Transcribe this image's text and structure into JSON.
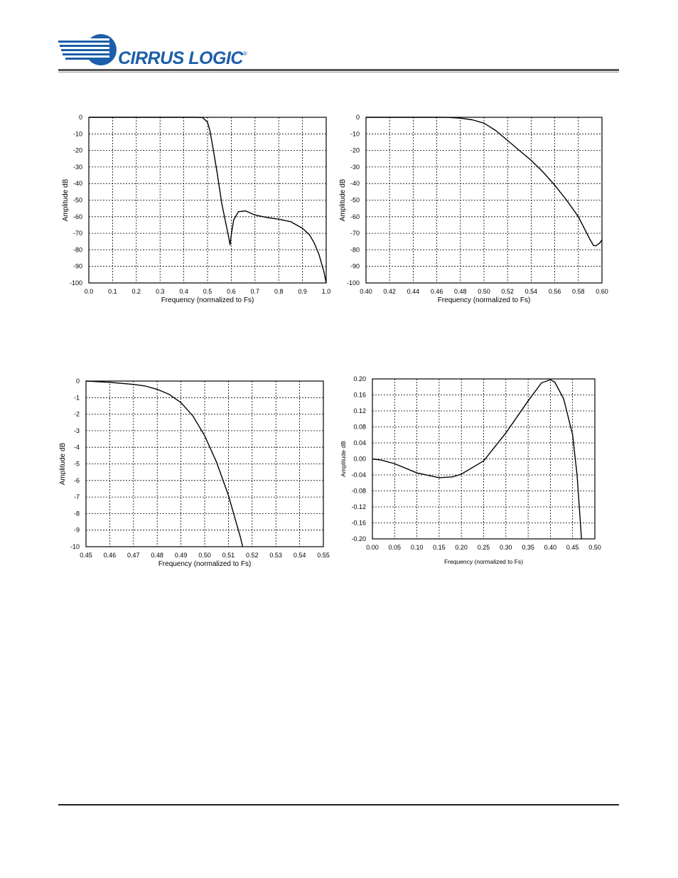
{
  "header": {
    "brand": "CIRRUS LOGIC",
    "trademark": "®"
  },
  "chart_data": [
    {
      "type": "line",
      "xlabel": "Frequency (normalized to Fs)",
      "ylabel": "Amplitude dB",
      "xlim": [
        0.0,
        1.0
      ],
      "ylim": [
        -100,
        0
      ],
      "grid": true,
      "xticks": [
        "0.0",
        "0.1",
        "0.2",
        "0.3",
        "0.4",
        "0.5",
        "0.6",
        "0.7",
        "0.8",
        "0.9",
        "1.0"
      ],
      "yticks": [
        "0",
        "-10",
        "-20",
        "-30",
        "-40",
        "-50",
        "-60",
        "-70",
        "-80",
        "-90",
        "-100"
      ],
      "series": [
        {
          "x": [
            0.0,
            0.45,
            0.48,
            0.5,
            0.51,
            0.52,
            0.54,
            0.56,
            0.58,
            0.59,
            0.595,
            0.6,
            0.61,
            0.63,
            0.66,
            0.7,
            0.75,
            0.8,
            0.85,
            0.9,
            0.93,
            0.95,
            0.97,
            0.98,
            0.99,
            1.0
          ],
          "y": [
            0.0,
            0.0,
            -0.2,
            -3,
            -8,
            -16,
            -33,
            -52,
            -66,
            -73,
            -77,
            -71,
            -62,
            -57,
            -56.5,
            -59,
            -60.5,
            -61.5,
            -63,
            -67,
            -71,
            -76,
            -83,
            -88,
            -93,
            -100
          ]
        }
      ]
    },
    {
      "type": "line",
      "xlabel": "Frequency (normalized to Fs)",
      "ylabel": "Amplitude dB",
      "xlim": [
        0.4,
        0.6
      ],
      "ylim": [
        -100,
        0
      ],
      "grid": true,
      "xticks": [
        "0.40",
        "0.42",
        "0.44",
        "0.46",
        "0.48",
        "0.50",
        "0.52",
        "0.54",
        "0.56",
        "0.58",
        "0.60"
      ],
      "yticks": [
        "0",
        "-10",
        "-20",
        "-30",
        "-40",
        "-50",
        "-60",
        "-70",
        "-80",
        "-90",
        "-100"
      ],
      "series": [
        {
          "x": [
            0.4,
            0.46,
            0.47,
            0.48,
            0.49,
            0.5,
            0.51,
            0.52,
            0.53,
            0.54,
            0.55,
            0.56,
            0.57,
            0.58,
            0.585,
            0.59,
            0.593,
            0.595,
            0.598,
            0.6
          ],
          "y": [
            0.0,
            0.0,
            -0.1,
            -0.5,
            -1.5,
            -3.5,
            -8,
            -14,
            -20,
            -26,
            -33,
            -41,
            -50,
            -60,
            -67,
            -74,
            -77.5,
            -77.5,
            -76,
            -74
          ]
        }
      ]
    },
    {
      "type": "line",
      "xlabel": "Frequency (normalized to Fs)",
      "ylabel": "Amplitude dB",
      "xlim": [
        0.45,
        0.55
      ],
      "ylim": [
        -10,
        0
      ],
      "grid": true,
      "xticks": [
        "0.45",
        "0.46",
        "0.47",
        "0.48",
        "0.49",
        "0.50",
        "0.51",
        "0.52",
        "0.53",
        "0.54",
        "0.55"
      ],
      "yticks": [
        "0",
        "-1",
        "-2",
        "-3",
        "-4",
        "-5",
        "-6",
        "-7",
        "-8",
        "-9",
        "-10"
      ],
      "series": [
        {
          "x": [
            0.45,
            0.46,
            0.47,
            0.475,
            0.48,
            0.485,
            0.49,
            0.495,
            0.5,
            0.505,
            0.51,
            0.515,
            0.516
          ],
          "y": [
            0.0,
            -0.08,
            -0.2,
            -0.3,
            -0.5,
            -0.8,
            -1.3,
            -2.1,
            -3.3,
            -4.9,
            -6.9,
            -9.4,
            -10
          ]
        }
      ]
    },
    {
      "type": "line",
      "xlabel": "Frequency (normalized to Fs)",
      "ylabel": "Amplitude dB",
      "xlim": [
        0.0,
        0.5
      ],
      "ylim": [
        -0.2,
        0.2
      ],
      "grid": true,
      "xticks": [
        "0.00",
        "0.05",
        "0.10",
        "0.15",
        "0.20",
        "0.25",
        "0.30",
        "0.35",
        "0.40",
        "0.45",
        "0.50"
      ],
      "yticks": [
        "0.20",
        "0.16",
        "0.12",
        "0.08",
        "0.04",
        "0.00",
        "-0.04",
        "-0.08",
        "-0.12",
        "-0.16",
        "-0.20"
      ],
      "series": [
        {
          "x": [
            0.0,
            0.02,
            0.05,
            0.1,
            0.15,
            0.18,
            0.2,
            0.25,
            0.3,
            0.35,
            0.38,
            0.4,
            0.41,
            0.43,
            0.45,
            0.46,
            0.465,
            0.47
          ],
          "y": [
            0.0,
            -0.003,
            -0.012,
            -0.035,
            -0.047,
            -0.045,
            -0.038,
            -0.005,
            0.065,
            0.145,
            0.19,
            0.198,
            0.192,
            0.15,
            0.06,
            -0.04,
            -0.12,
            -0.2
          ]
        }
      ]
    }
  ]
}
